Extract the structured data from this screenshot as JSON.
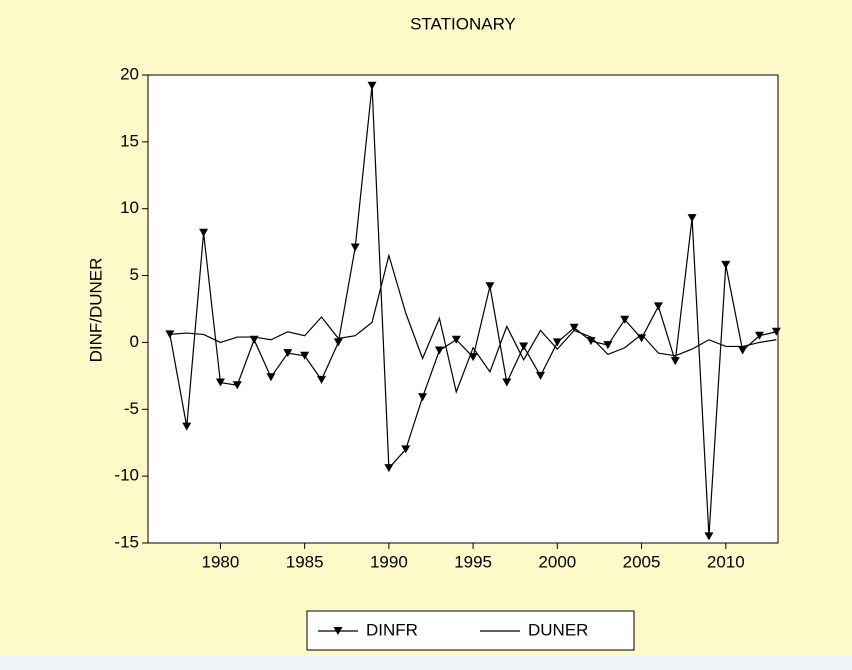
{
  "chart_data": {
    "type": "line",
    "title": "STATIONARY",
    "y_label": "DINF/DUNER",
    "x": [
      1977,
      1978,
      1979,
      1980,
      1981,
      1982,
      1983,
      1984,
      1985,
      1986,
      1987,
      1988,
      1989,
      1990,
      1991,
      1992,
      1993,
      1994,
      1995,
      1996,
      1997,
      1998,
      1999,
      2000,
      2001,
      2002,
      2003,
      2004,
      2005,
      2006,
      2007,
      2008,
      2009,
      2010,
      2011,
      2012,
      2013
    ],
    "series": [
      {
        "name": "DINFR",
        "color": "#000000",
        "marker": "triangle-down",
        "values": [
          0.6,
          -6.3,
          8.2,
          -3.0,
          -3.2,
          0.2,
          -2.6,
          -0.8,
          -1.0,
          -2.8,
          0.0,
          7.1,
          19.2,
          -9.4,
          -8.0,
          -4.1,
          -0.6,
          0.2,
          -1.1,
          4.2,
          -3.0,
          -0.3,
          -2.5,
          0.0,
          1.1,
          0.1,
          -0.2,
          1.7,
          0.3,
          2.7,
          -1.4,
          9.3,
          -14.5,
          5.8,
          -0.6,
          0.5,
          0.8
        ]
      },
      {
        "name": "DUNER",
        "color": "#000000",
        "marker": "none",
        "values": [
          0.6,
          0.7,
          0.6,
          0.0,
          0.4,
          0.4,
          0.2,
          0.8,
          0.5,
          1.9,
          0.3,
          0.5,
          1.5,
          6.5,
          2.2,
          -1.2,
          1.8,
          -3.7,
          -0.4,
          -2.2,
          1.2,
          -1.3,
          0.9,
          -0.5,
          0.9,
          0.4,
          -0.9,
          -0.4,
          0.6,
          -0.8,
          -1.0,
          -0.5,
          0.2,
          -0.3,
          -0.3,
          0.0,
          0.2
        ]
      }
    ],
    "xlim": [
      1975.7,
      2013.1
    ],
    "xticks": [
      1980,
      1985,
      1990,
      1995,
      2000,
      2005,
      2010
    ],
    "ylim": [
      -15,
      20
    ],
    "yticks": [
      20,
      15,
      10,
      5,
      0,
      -5,
      -10,
      -15
    ],
    "legend": "bottom"
  }
}
